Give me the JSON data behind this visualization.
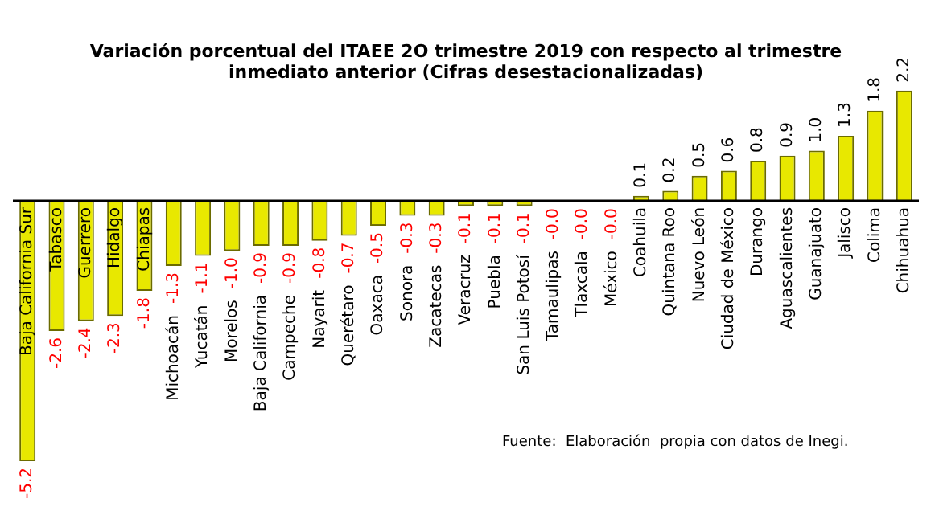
{
  "chart_data": {
    "type": "bar",
    "title": [
      "Variación porcentual del ITAEE 2O trimestre 2019 con respecto al trimestre",
      "inmediato anterior (Cifras desestacionalizadas)"
    ],
    "categories": [
      "Baja California Sur",
      "Tabasco",
      "Guerrero",
      "Hidalgo",
      "Chiapas",
      "Michoacán",
      "Yucatán",
      "Morelos",
      "Baja California",
      "Campeche",
      "Nayarit",
      "Querétaro",
      "Oaxaca",
      "Sonora",
      "Zacatecas",
      "Veracruz",
      "Puebla",
      "San Luis Potosí",
      "Tamaulipas",
      "Tlaxcala",
      "México",
      "Coahuila",
      "Quintana Roo",
      "Nuevo León",
      "Ciudad de México",
      "Durango",
      "Aguascalientes",
      "Guanajuato",
      "Jalisco",
      "Colima",
      "Chihuahua"
    ],
    "values": [
      -5.2,
      -2.6,
      -2.4,
      -2.3,
      -1.8,
      -1.3,
      -1.1,
      -1.0,
      -0.9,
      -0.9,
      -0.8,
      -0.7,
      -0.5,
      -0.3,
      -0.3,
      -0.1,
      -0.1,
      -0.1,
      -0.02,
      -0.02,
      -0.02,
      0.1,
      0.2,
      0.5,
      0.6,
      0.8,
      0.9,
      1.0,
      1.3,
      1.8,
      2.2
    ],
    "value_labels": [
      "-5.2",
      "-2.6",
      "-2.4",
      "-2.3",
      "-1.8",
      "-1.3",
      "-1.1",
      "-1.0",
      "-0.9",
      "-0.9",
      "-0.8",
      "-0.7",
      "-0.5",
      "-0.3",
      "-0.3",
      "-0.1",
      "-0.1",
      "-0.1",
      "-0.0",
      "-0.0",
      "-0.0",
      "0.1",
      "0.2",
      "0.5",
      "0.6",
      "0.8",
      "0.9",
      "1.0",
      "1.3",
      "1.8",
      "2.2"
    ],
    "color": "#e8e800",
    "annotations": [
      "Fuente:  Elaboración  propia con datos de Inegi."
    ],
    "legend": false
  }
}
